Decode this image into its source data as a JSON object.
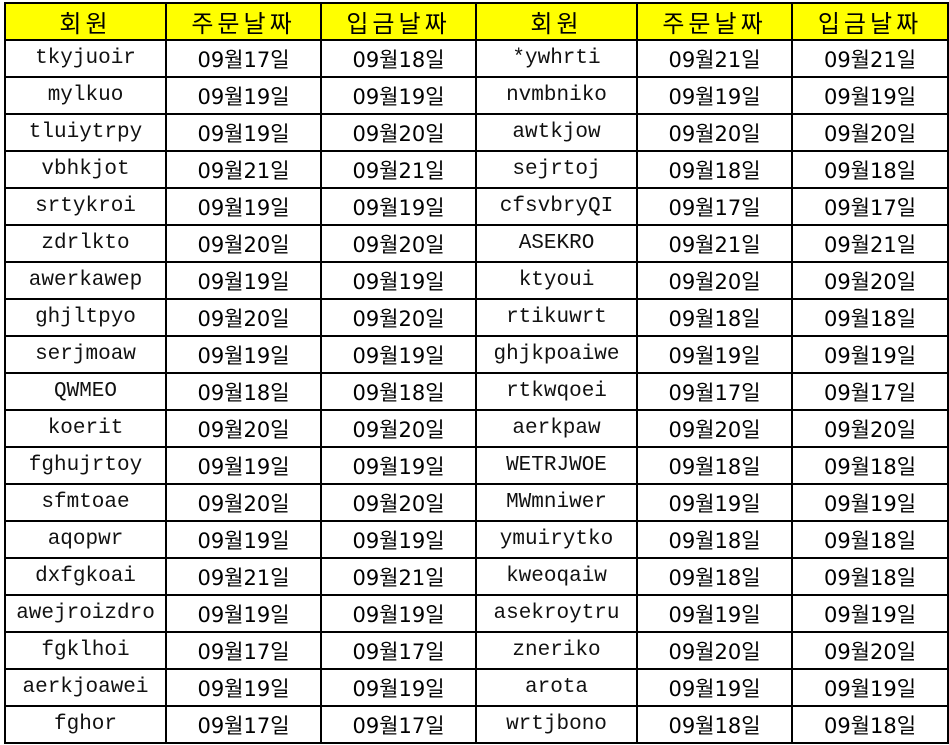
{
  "header": {
    "member": "회원",
    "order_date": "주문날짜",
    "pay_date": "입금날짜"
  },
  "colors": {
    "header_bg": "#ffff00",
    "grid": "#000000"
  },
  "rows": [
    [
      "tkyjuoir",
      "09월17일",
      "09월18일",
      "*ywhrti",
      "09월21일",
      "09월21일"
    ],
    [
      "mylkuo",
      "09월19일",
      "09월19일",
      "nvmbniko",
      "09월19일",
      "09월19일"
    ],
    [
      "tluiytrpy",
      "09월19일",
      "09월20일",
      "awtkjow",
      "09월20일",
      "09월20일"
    ],
    [
      "vbhkjot",
      "09월21일",
      "09월21일",
      "sejrtoj",
      "09월18일",
      "09월18일"
    ],
    [
      "srtykroi",
      "09월19일",
      "09월19일",
      "cfsvbryQI",
      "09월17일",
      "09월17일"
    ],
    [
      "zdrlkto",
      "09월20일",
      "09월20일",
      "ASEKRO",
      "09월21일",
      "09월21일"
    ],
    [
      "awerkawep",
      "09월19일",
      "09월19일",
      "ktyoui",
      "09월20일",
      "09월20일"
    ],
    [
      "ghjltpyo",
      "09월20일",
      "09월20일",
      "rtikuwrt",
      "09월18일",
      "09월18일"
    ],
    [
      "serjmoaw",
      "09월19일",
      "09월19일",
      "ghjkpoaiwe",
      "09월19일",
      "09월19일"
    ],
    [
      "QWMEO",
      "09월18일",
      "09월18일",
      "rtkwqoei",
      "09월17일",
      "09월17일"
    ],
    [
      "koerit",
      "09월20일",
      "09월20일",
      "aerkpaw",
      "09월20일",
      "09월20일"
    ],
    [
      "fghujrtoy",
      "09월19일",
      "09월19일",
      "WETRJWOE",
      "09월18일",
      "09월18일"
    ],
    [
      "sfmtoae",
      "09월20일",
      "09월20일",
      "MWmniwer",
      "09월19일",
      "09월19일"
    ],
    [
      "aqopwr",
      "09월19일",
      "09월19일",
      "ymuirytko",
      "09월18일",
      "09월18일"
    ],
    [
      "dxfgkoai",
      "09월21일",
      "09월21일",
      "kweoqaiw",
      "09월18일",
      "09월18일"
    ],
    [
      "awejroizdro",
      "09월19일",
      "09월19일",
      "asekroytru",
      "09월19일",
      "09월19일"
    ],
    [
      "fgklhoi",
      "09월17일",
      "09월17일",
      "zneriko",
      "09월20일",
      "09월20일"
    ],
    [
      "aerkjoawei",
      "09월19일",
      "09월19일",
      "arota",
      "09월19일",
      "09월19일"
    ],
    [
      "fghor",
      "09월17일",
      "09월17일",
      "wrtjbono",
      "09월18일",
      "09월18일"
    ]
  ]
}
